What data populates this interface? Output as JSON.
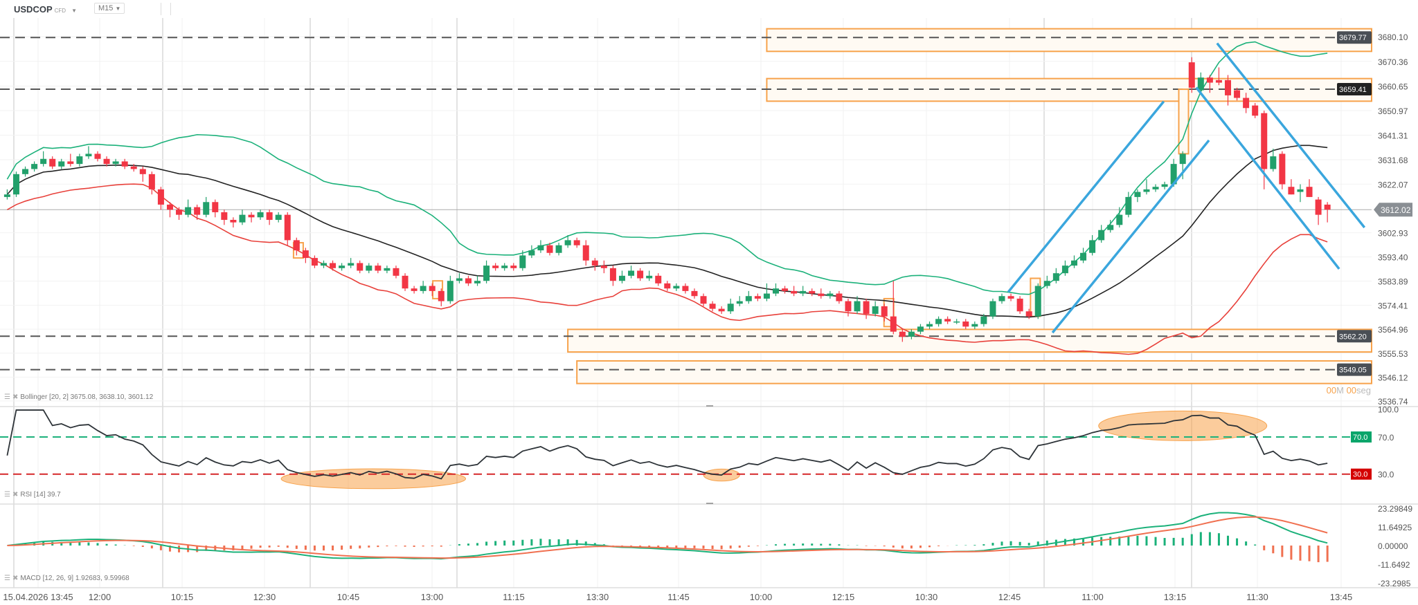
{
  "header": {
    "symbol": "USDCOP",
    "instrument_type": "CFD",
    "timeframe": "M15"
  },
  "colors": {
    "up": "#22a06b",
    "down": "#f23645",
    "bb_upper": "#1bb17a",
    "bb_mid": "#222222",
    "bb_lower": "#e8403a",
    "zone": "#f7a24b",
    "trend": "#3aa6dd",
    "macd": "#1bb17a",
    "signal": "#f07050"
  },
  "price_axis": {
    "ticks": [
      "3680.10",
      "3670.36",
      "3660.65",
      "3650.97",
      "3641.31",
      "3631.68",
      "3622.07",
      "3602.93",
      "3593.40",
      "3583.89",
      "3574.41",
      "3564.96",
      "3555.53",
      "3546.12",
      "3536.74"
    ],
    "current_price": "3612.02"
  },
  "levels": [
    {
      "price": 3679.77,
      "label": "3679.77"
    },
    {
      "price": 3659.41,
      "label": "3659.41"
    },
    {
      "price": 3562.2,
      "label": "3562.20"
    },
    {
      "price": 3549.05,
      "label": "3549.05"
    }
  ],
  "zones": [
    {
      "from_index": 84,
      "top": 3683.2,
      "bottom": 3674.3
    },
    {
      "from_index": 84,
      "top": 3663.6,
      "bottom": 3654.7
    },
    {
      "from_index": 62,
      "top": 3564.9,
      "bottom": 3556.0
    },
    {
      "from_index": 63,
      "top": 3552.5,
      "bottom": 3543.6
    }
  ],
  "gap_boxes": [
    {
      "index": 32.2,
      "top": 3599,
      "bottom": 3593
    },
    {
      "index": 47.6,
      "top": 3584,
      "bottom": 3577
    },
    {
      "index": 97.5,
      "top": 3577,
      "bottom": 3566
    },
    {
      "index": 113.7,
      "top": 3585,
      "bottom": 3570
    },
    {
      "index": 130.1,
      "top": 3659.4,
      "bottom": 3634
    }
  ],
  "trend_lines": [
    {
      "i1": 110.7,
      "p1": 3579.6,
      "i2": 127.9,
      "p2": 3654.6
    },
    {
      "i1": 115.6,
      "p1": 3563.6,
      "i2": 132.9,
      "p2": 3639.3
    },
    {
      "i1": 133.8,
      "p1": 3677.5,
      "i2": 150.1,
      "p2": 3605.0
    },
    {
      "i1": 131.5,
      "p1": 3660.1,
      "i2": 147.3,
      "p2": 3588.7
    }
  ],
  "countdown": {
    "min": "00",
    "min_unit": "M",
    "sec": "00",
    "sec_unit": "seg"
  },
  "indicators": {
    "bollinger": {
      "label": "Bollinger [20, 2] 3675.08, 3638.10, 3601.12"
    },
    "rsi": {
      "label": "RSI [14] 39.7",
      "overbought": "70.0",
      "oversold": "30.0",
      "axis": [
        "100.0",
        "70.0",
        "30.0"
      ],
      "highlights": [
        {
          "index": 40.5,
          "rsi": 25,
          "rx": 10.2,
          "ry": 10.7
        },
        {
          "index": 79,
          "rsi": 29,
          "rx": 2,
          "ry": 6.5
        },
        {
          "index": 130,
          "rsi": 82,
          "rx": 9.3,
          "ry": 16
        }
      ]
    },
    "macd": {
      "label": "MACD [12, 26, 9] 1.92683, 9.59968",
      "axis": [
        "23.29849",
        "11.64925",
        "0.00000",
        "-11.6492",
        "-23.2985"
      ]
    }
  },
  "time_axis": [
    "15.04.2026 13:45",
    "12:00",
    "10:15",
    "12:30",
    "10:45",
    "13:00",
    "11:15",
    "13:30",
    "11:45",
    "10:00",
    "12:15",
    "10:30",
    "12:45",
    "11:00",
    "13:15",
    "11:30",
    "13:45"
  ],
  "chart_data": {
    "type": "candlestick",
    "ohlc": [
      [
        3617,
        3620,
        3616,
        3618
      ],
      [
        3618,
        3627,
        3617,
        3626
      ],
      [
        3626,
        3629,
        3625,
        3628
      ],
      [
        3628,
        3631,
        3627,
        3630
      ],
      [
        3630,
        3635,
        3629,
        3632
      ],
      [
        3632,
        3633,
        3628,
        3629
      ],
      [
        3629,
        3632,
        3628,
        3631
      ],
      [
        3631,
        3634,
        3629,
        3630
      ],
      [
        3630,
        3634,
        3629,
        3633
      ],
      [
        3633,
        3637,
        3632,
        3634
      ],
      [
        3634,
        3635,
        3631,
        3632
      ],
      [
        3632,
        3633,
        3629,
        3630
      ],
      [
        3630,
        3632,
        3629,
        3631
      ],
      [
        3631,
        3632,
        3628,
        3629
      ],
      [
        3629,
        3630,
        3627,
        3628
      ],
      [
        3628,
        3629,
        3623,
        3626
      ],
      [
        3626,
        3627,
        3618,
        3620
      ],
      [
        3620,
        3621,
        3612,
        3614
      ],
      [
        3614,
        3615,
        3609,
        3612
      ],
      [
        3612,
        3613,
        3608,
        3610
      ],
      [
        3610,
        3616,
        3609,
        3613
      ],
      [
        3613,
        3614,
        3608,
        3610
      ],
      [
        3610,
        3617,
        3609,
        3615
      ],
      [
        3615,
        3616,
        3609,
        3611
      ],
      [
        3611,
        3612,
        3606,
        3608
      ],
      [
        3608,
        3609,
        3605,
        3607
      ],
      [
        3607,
        3612,
        3606,
        3610
      ],
      [
        3610,
        3611,
        3607,
        3609
      ],
      [
        3609,
        3612,
        3608,
        3611
      ],
      [
        3611,
        3612,
        3606,
        3608
      ],
      [
        3608,
        3611,
        3607,
        3610
      ],
      [
        3610,
        3611,
        3598,
        3600
      ],
      [
        3600,
        3601,
        3594,
        3596
      ],
      [
        3596,
        3597,
        3591,
        3593
      ],
      [
        3593,
        3594,
        3589,
        3590
      ],
      [
        3590,
        3592,
        3589,
        3591
      ],
      [
        3591,
        3592,
        3588,
        3589
      ],
      [
        3589,
        3591,
        3588,
        3590
      ],
      [
        3590,
        3593,
        3589,
        3591
      ],
      [
        3591,
        3592,
        3587,
        3588
      ],
      [
        3588,
        3591,
        3587,
        3590
      ],
      [
        3590,
        3591,
        3587,
        3588
      ],
      [
        3588,
        3590,
        3587,
        3589
      ],
      [
        3589,
        3590,
        3585,
        3586
      ],
      [
        3586,
        3587,
        3580,
        3581
      ],
      [
        3581,
        3582,
        3579,
        3580
      ],
      [
        3580,
        3584,
        3579,
        3582
      ],
      [
        3582,
        3583,
        3578,
        3580
      ],
      [
        3580,
        3581,
        3574,
        3576
      ],
      [
        3576,
        3586,
        3575,
        3584
      ],
      [
        3584,
        3587,
        3583,
        3585
      ],
      [
        3585,
        3586,
        3582,
        3583
      ],
      [
        3583,
        3586,
        3582,
        3584
      ],
      [
        3584,
        3592,
        3583,
        3590
      ],
      [
        3590,
        3591,
        3588,
        3589
      ],
      [
        3589,
        3591,
        3588,
        3590
      ],
      [
        3590,
        3591,
        3588,
        3589
      ],
      [
        3589,
        3596,
        3588,
        3594
      ],
      [
        3594,
        3598,
        3593,
        3596
      ],
      [
        3596,
        3600,
        3595,
        3598
      ],
      [
        3598,
        3599,
        3594,
        3595
      ],
      [
        3595,
        3599,
        3594,
        3598
      ],
      [
        3598,
        3602,
        3597,
        3600
      ],
      [
        3600,
        3601,
        3597,
        3598
      ],
      [
        3598,
        3600,
        3590,
        3592
      ],
      [
        3592,
        3593,
        3588,
        3590
      ],
      [
        3590,
        3592,
        3587,
        3589
      ],
      [
        3589,
        3590,
        3582,
        3584
      ],
      [
        3584,
        3588,
        3583,
        3586
      ],
      [
        3586,
        3590,
        3585,
        3588
      ],
      [
        3588,
        3589,
        3584,
        3585
      ],
      [
        3585,
        3588,
        3584,
        3586
      ],
      [
        3586,
        3587,
        3582,
        3583
      ],
      [
        3583,
        3584,
        3580,
        3581
      ],
      [
        3581,
        3583,
        3580,
        3582
      ],
      [
        3582,
        3583,
        3579,
        3580
      ],
      [
        3580,
        3581,
        3577,
        3578
      ],
      [
        3578,
        3579,
        3574,
        3575
      ],
      [
        3575,
        3576,
        3572,
        3573
      ],
      [
        3573,
        3574,
        3571,
        3572
      ],
      [
        3572,
        3577,
        3571,
        3575
      ],
      [
        3575,
        3578,
        3574,
        3576
      ],
      [
        3576,
        3580,
        3575,
        3578
      ],
      [
        3578,
        3579,
        3576,
        3577
      ],
      [
        3577,
        3583,
        3576,
        3579
      ],
      [
        3579,
        3583,
        3578,
        3581
      ],
      [
        3581,
        3582,
        3579,
        3580
      ],
      [
        3580,
        3582,
        3578,
        3579
      ],
      [
        3579,
        3582,
        3578,
        3580
      ],
      [
        3580,
        3581,
        3578,
        3579
      ],
      [
        3579,
        3581,
        3577,
        3578
      ],
      [
        3578,
        3580,
        3577,
        3579
      ],
      [
        3579,
        3580,
        3575,
        3576
      ],
      [
        3576,
        3577,
        3570,
        3572
      ],
      [
        3572,
        3578,
        3571,
        3576
      ],
      [
        3576,
        3577,
        3569,
        3571
      ],
      [
        3571,
        3576,
        3570,
        3574
      ],
      [
        3574,
        3575,
        3568,
        3570
      ],
      [
        3570,
        3584,
        3563,
        3564
      ],
      [
        3564,
        3565,
        3560,
        3562
      ],
      [
        3562,
        3565,
        3561,
        3564
      ],
      [
        3564,
        3567,
        3563,
        3566
      ],
      [
        3566,
        3568,
        3565,
        3567
      ],
      [
        3567,
        3570,
        3566,
        3569
      ],
      [
        3569,
        3570,
        3567,
        3568
      ],
      [
        3568,
        3569,
        3567,
        3568
      ],
      [
        3568,
        3569,
        3565,
        3566
      ],
      [
        3566,
        3568,
        3565,
        3567
      ],
      [
        3567,
        3571,
        3566,
        3570
      ],
      [
        3570,
        3577,
        3569,
        3576
      ],
      [
        3576,
        3579,
        3575,
        3578
      ],
      [
        3578,
        3579,
        3576,
        3577
      ],
      [
        3577,
        3578,
        3571,
        3572
      ],
      [
        3572,
        3573,
        3569,
        3570
      ],
      [
        3570,
        3583,
        3569,
        3582
      ],
      [
        3582,
        3586,
        3581,
        3584
      ],
      [
        3584,
        3589,
        3583,
        3587
      ],
      [
        3587,
        3592,
        3586,
        3590
      ],
      [
        3590,
        3594,
        3589,
        3592
      ],
      [
        3592,
        3597,
        3591,
        3595
      ],
      [
        3595,
        3602,
        3594,
        3600
      ],
      [
        3600,
        3606,
        3599,
        3604
      ],
      [
        3604,
        3608,
        3603,
        3606
      ],
      [
        3606,
        3613,
        3605,
        3610
      ],
      [
        3610,
        3619,
        3609,
        3617
      ],
      [
        3617,
        3620,
        3615,
        3619
      ],
      [
        3619,
        3624,
        3618,
        3620
      ],
      [
        3620,
        3622,
        3619,
        3621
      ],
      [
        3621,
        3623,
        3620,
        3622
      ],
      [
        3622,
        3632,
        3621,
        3630
      ],
      [
        3630,
        3635,
        3624,
        3634
      ],
      [
        3670,
        3672,
        3658,
        3660
      ],
      [
        3659,
        3666,
        3658,
        3664
      ],
      [
        3664,
        3665,
        3658,
        3662
      ],
      [
        3663,
        3668,
        3661,
        3662
      ],
      [
        3663,
        3665,
        3653,
        3657
      ],
      [
        3659,
        3660,
        3655,
        3656
      ],
      [
        3656,
        3658,
        3650,
        3652
      ],
      [
        3653,
        3654,
        3648,
        3649
      ],
      [
        3650,
        3651,
        3620,
        3628
      ],
      [
        3628,
        3636,
        3627,
        3633
      ],
      [
        3634,
        3635,
        3620,
        3622
      ],
      [
        3621,
        3624,
        3618,
        3618
      ],
      [
        3619,
        3622,
        3615,
        3620
      ],
      [
        3621,
        3624,
        3617,
        3617
      ],
      [
        3616,
        3617,
        3606,
        3610
      ],
      [
        3614,
        3615,
        3607,
        3612.02
      ]
    ],
    "ylim": [
      3536.74,
      3680.1
    ]
  }
}
